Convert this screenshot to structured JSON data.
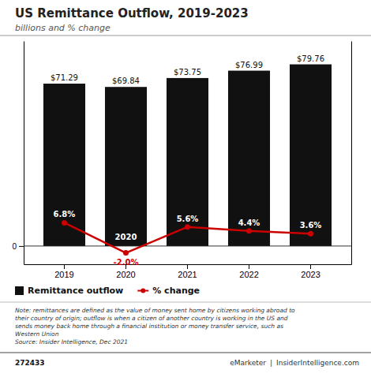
{
  "chart_data": {
    "type": "bar",
    "title": "US Remittance Outflow, 2019-2023",
    "subtitle": "billions and % change",
    "categories": [
      "2019",
      "2020",
      "2021",
      "2022",
      "2023"
    ],
    "series": [
      {
        "name": "Remittance outflow",
        "type": "bar",
        "color": "#111111",
        "values": [
          71.29,
          69.84,
          73.75,
          76.99,
          79.76
        ],
        "value_labels": [
          "$71.29",
          "$69.84",
          "$73.75",
          "$76.99",
          "$79.76"
        ]
      },
      {
        "name": "% change",
        "type": "line",
        "axis": "y2",
        "color": "#cc0000",
        "marker": "circle",
        "values": [
          6.8,
          -2.0,
          5.6,
          4.4,
          3.6
        ],
        "value_labels": [
          "6.8%",
          "-2.0%",
          "5.6%",
          "4.4%",
          "3.6%"
        ]
      }
    ],
    "ylim": [
      -8,
      90
    ],
    "yticks": [
      0
    ],
    "y2lim": [
      -5.333333333333333,
      60
    ],
    "y2ticks": [],
    "data_labels": true,
    "legend": "bottom",
    "grid": false,
    "annotations": [
      {
        "text": "2020",
        "category": "2020"
      }
    ],
    "note": "Note: remittances are defined as the value of money sent home by citizens working abroad to\ntheir country of origin; outflow is when a citizen of another country is working in the US and\nsends money back home through a financial institution or money transfer service, such as\nWestern Union\nSource: Insider Intelligence, Dec 2021",
    "footer": [
      "272433",
      "eMarketer",
      "|",
      "InsiderIntelligence.com"
    ]
  }
}
